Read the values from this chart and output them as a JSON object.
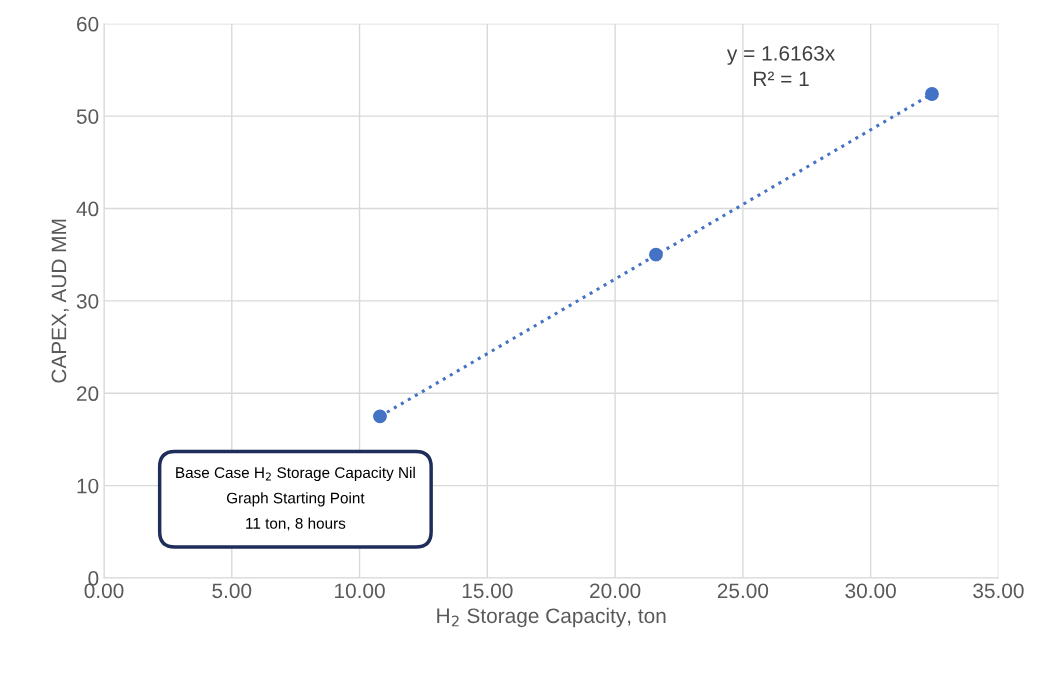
{
  "chart_data": {
    "type": "scatter",
    "xlabel": "H$_{2}$ Storage Capacity, ton",
    "ylabel": "CAPEX, AUD MM",
    "series": [
      {
        "color": "#4472c4",
        "x": [
          10.8,
          21.6,
          32.4
        ],
        "values": [
          17.5,
          35.0,
          52.4
        ],
        "marker": "circle"
      },
      {
        "type": "line",
        "color": "#4472c4",
        "x": [
          10.8,
          32.4
        ],
        "values": [
          17.5,
          52.4
        ],
        "marker": "none",
        "line_style": "dotted"
      }
    ],
    "xlim": [
      0,
      35
    ],
    "xticks": [
      {
        "value": 0,
        "label": "0.00"
      },
      {
        "value": 5,
        "label": "5.00"
      },
      {
        "value": 10,
        "label": "10.00"
      },
      {
        "value": 15,
        "label": "15.00"
      },
      {
        "value": 20,
        "label": "20.00"
      },
      {
        "value": 25,
        "label": "25.00"
      },
      {
        "value": 30,
        "label": "30.00"
      },
      {
        "value": 35,
        "label": "35.00"
      }
    ],
    "ylim": [
      0,
      60
    ],
    "yticks": [
      0,
      10,
      20,
      30,
      40,
      50,
      60
    ],
    "grid": true,
    "legend": false,
    "annotations": [
      "y = 1.6163x\nR² = 1",
      "Base Case H$_{2}$ Storage Capacity Nil\nGraph Starting Point\n11 ton, 8 hours"
    ]
  }
}
